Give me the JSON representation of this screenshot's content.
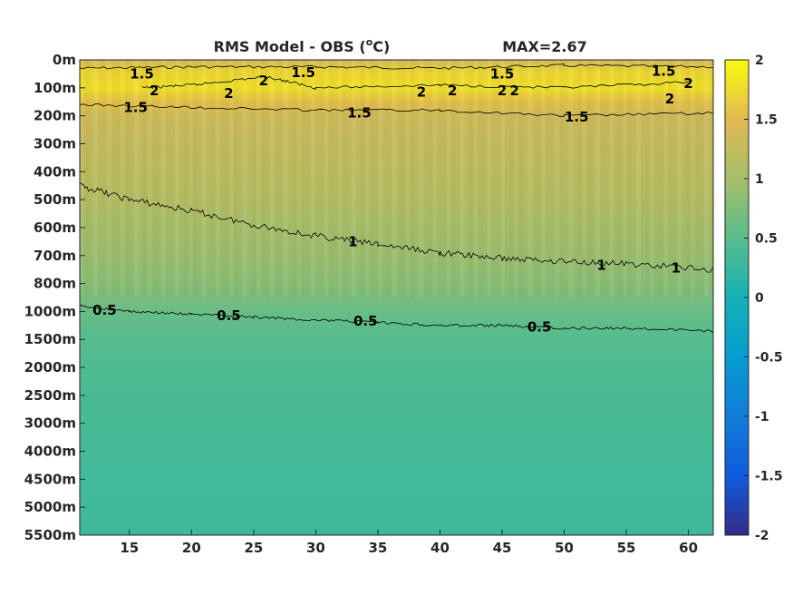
{
  "chart_data": {
    "type": "heatmap",
    "title": "RMS Model - OBS (",
    "title_unit": "o",
    "title_close": "C)",
    "max_label": "MAX=2.67",
    "xlabel": "",
    "ylabel": "",
    "xlim": [
      11,
      62
    ],
    "x_ticks": [
      15,
      20,
      25,
      30,
      35,
      40,
      45,
      50,
      55,
      60
    ],
    "y_ticks": [
      "0m",
      "100m",
      "200m",
      "300m",
      "400m",
      "500m",
      "600m",
      "700m",
      "800m",
      "1000m",
      "1500m",
      "2000m",
      "2500m",
      "3000m",
      "4000m",
      "4500m",
      "5000m",
      "5500m"
    ],
    "colorbar": {
      "limits": [
        -2,
        2
      ],
      "ticks": [
        "2",
        "1.5",
        "1",
        "0.5",
        "0",
        "-0.5",
        "-1",
        "-1.5",
        "-2"
      ],
      "colormap": "parula"
    },
    "depth_profile": [
      {
        "level": 0,
        "value": 1.35
      },
      {
        "level": 0.35,
        "value": 1.7
      },
      {
        "level": 1,
        "value": 1.8
      },
      {
        "level": 1.5,
        "value": 1.55
      },
      {
        "level": 2,
        "value": 1.35
      },
      {
        "level": 3,
        "value": 1.25
      },
      {
        "level": 4,
        "value": 1.2
      },
      {
        "level": 5,
        "value": 1.12
      },
      {
        "level": 6,
        "value": 1.0
      },
      {
        "level": 7,
        "value": 0.93
      },
      {
        "level": 8,
        "value": 0.82
      },
      {
        "level": 9,
        "value": 0.6
      },
      {
        "level": 10,
        "value": 0.47
      },
      {
        "level": 11,
        "value": 0.42
      },
      {
        "level": 13,
        "value": 0.37
      },
      {
        "level": 15,
        "value": 0.33
      },
      {
        "level": 17,
        "value": 0.3
      }
    ],
    "contours": [
      {
        "level": "1.5",
        "points": [
          [
            11,
            0.3
          ],
          [
            20,
            0.25
          ],
          [
            30,
            0.25
          ],
          [
            40,
            0.3
          ],
          [
            50,
            0.2
          ],
          [
            62,
            0.25
          ]
        ]
      },
      {
        "level": "2",
        "points": [
          [
            16,
            1.0
          ],
          [
            20,
            0.9
          ],
          [
            26,
            0.6
          ],
          [
            30,
            1.0
          ],
          [
            40,
            0.9
          ],
          [
            50,
            1.0
          ],
          [
            60,
            0.8
          ]
        ]
      },
      {
        "level": "1.5",
        "points": [
          [
            11,
            1.6
          ],
          [
            20,
            1.7
          ],
          [
            30,
            1.8
          ],
          [
            40,
            1.8
          ],
          [
            50,
            2.0
          ],
          [
            62,
            1.9
          ]
        ]
      },
      {
        "level": "1",
        "points": [
          [
            11,
            4.5
          ],
          [
            15,
            5.0
          ],
          [
            20,
            5.4
          ],
          [
            25,
            5.9
          ],
          [
            30,
            6.3
          ],
          [
            35,
            6.6
          ],
          [
            40,
            6.9
          ],
          [
            45,
            7.1
          ],
          [
            50,
            7.2
          ],
          [
            55,
            7.3
          ],
          [
            62,
            7.5
          ]
        ]
      },
      {
        "level": "0.5",
        "points": [
          [
            11,
            8.8
          ],
          [
            15,
            9.0
          ],
          [
            20,
            9.1
          ],
          [
            25,
            9.2
          ],
          [
            30,
            9.3
          ],
          [
            35,
            9.4
          ],
          [
            40,
            9.5
          ],
          [
            45,
            9.5
          ],
          [
            50,
            9.6
          ],
          [
            55,
            9.6
          ],
          [
            62,
            9.7
          ]
        ]
      }
    ],
    "contour_labels": [
      {
        "text": "1.5",
        "x": 16,
        "level": 0.5
      },
      {
        "text": "2",
        "x": 17,
        "level": 1.1
      },
      {
        "text": "2",
        "x": 23,
        "level": 1.2
      },
      {
        "text": "2",
        "x": 25.8,
        "level": 0.75
      },
      {
        "text": "1.5",
        "x": 29,
        "level": 0.45
      },
      {
        "text": "2",
        "x": 38.5,
        "level": 1.15
      },
      {
        "text": "2",
        "x": 41,
        "level": 1.1
      },
      {
        "text": "1.5",
        "x": 45,
        "level": 0.5
      },
      {
        "text": "2",
        "x": 45,
        "level": 1.1
      },
      {
        "text": "2",
        "x": 46,
        "level": 1.1
      },
      {
        "text": "1.5",
        "x": 58,
        "level": 0.4
      },
      {
        "text": "2",
        "x": 60,
        "level": 0.85
      },
      {
        "text": "2",
        "x": 58.5,
        "level": 1.4
      },
      {
        "text": "1.5",
        "x": 15.5,
        "level": 1.7
      },
      {
        "text": "1.5",
        "x": 33.5,
        "level": 1.9
      },
      {
        "text": "1.5",
        "x": 51,
        "level": 2.05
      },
      {
        "text": "1",
        "x": 33,
        "level": 6.5
      },
      {
        "text": "1",
        "x": 53,
        "level": 7.35
      },
      {
        "text": "1",
        "x": 59,
        "level": 7.45
      },
      {
        "text": "0.5",
        "x": 13,
        "level": 8.95
      },
      {
        "text": "0.5",
        "x": 23,
        "level": 9.15
      },
      {
        "text": "0.5",
        "x": 34,
        "level": 9.35
      },
      {
        "text": "0.5",
        "x": 48,
        "level": 9.55
      }
    ]
  }
}
